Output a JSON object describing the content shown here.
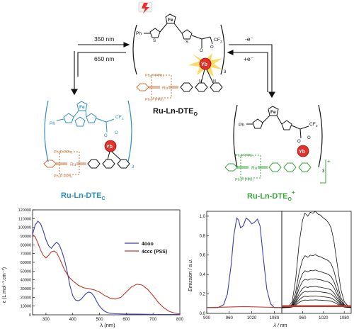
{
  "scheme": {
    "arrow_left_top": "350 nm",
    "arrow_left_bottom": "650 nm",
    "arrow_right_top": "-e⁻",
    "arrow_right_bottom": "+e⁻",
    "fe_label": "Fe",
    "ph_label": "Ph",
    "s_label": "S",
    "cf3_label": "CF",
    "cf3_sub": "3",
    "o_label": "O",
    "yb_label": "Yb",
    "ru_label": "Ru",
    "n_label": "N",
    "pph_top": "Ph₂P PPh₂",
    "pph_bottom": "Ph₂P PPh₂",
    "subscript_3": "3",
    "plus": "+",
    "label_center": "Ru-Ln-DTE",
    "label_center_sub": "O",
    "label_left": "Ru-Ln-DTE",
    "label_left_sub": "C",
    "label_right": "Ru-Ln-DTE",
    "label_right_sub": "O",
    "label_right_sup": "+",
    "colors": {
      "center_metal_frag": "#c8703a",
      "left": "#2b8fc4",
      "left_frag": "#c8703a",
      "right_frag": "#3aa63a",
      "yb": "#e8302a"
    }
  },
  "chart_data": [
    {
      "type": "line",
      "title": "",
      "xlabel": "λ (nm)",
      "ylabel": "ε (L.mol⁻¹.cm⁻¹)",
      "xlim": [
        250,
        800
      ],
      "ylim": [
        0,
        120000
      ],
      "xticks": [
        "300",
        "400",
        "500",
        "600",
        "700",
        "800"
      ],
      "yticks": [
        "0",
        "10000",
        "20000",
        "30000",
        "40000",
        "50000",
        "60000",
        "70000",
        "80000",
        "90000",
        "100000",
        "110000",
        "120000"
      ],
      "legend_position": "center-right",
      "series": [
        {
          "name": "4ooo",
          "color": "#3b3fa8",
          "x": [
            250,
            260,
            270,
            280,
            290,
            300,
            310,
            320,
            330,
            340,
            350,
            360,
            370,
            380,
            390,
            400,
            410,
            420,
            430,
            440,
            450,
            460,
            470,
            480,
            490,
            500,
            510,
            520,
            530,
            540,
            560,
            600,
            650,
            700,
            750,
            800
          ],
          "y": [
            92000,
            103000,
            107000,
            104000,
            96000,
            86000,
            79000,
            76000,
            80000,
            83000,
            80000,
            72000,
            62000,
            48000,
            33000,
            22000,
            17000,
            16000,
            17500,
            21000,
            24500,
            26000,
            25000,
            21000,
            15000,
            10000,
            6500,
            4000,
            2500,
            1800,
            1200,
            900,
            700,
            500,
            400,
            300
          ]
        },
        {
          "name": "4ccc (PSS)",
          "color": "#c0392b",
          "x": [
            250,
            260,
            270,
            280,
            290,
            300,
            310,
            320,
            330,
            340,
            350,
            360,
            370,
            380,
            390,
            400,
            420,
            440,
            460,
            480,
            500,
            520,
            540,
            560,
            580,
            600,
            620,
            640,
            660,
            680,
            700,
            720,
            740,
            760,
            780,
            800
          ],
          "y": [
            92000,
            89000,
            82000,
            74000,
            68000,
            65000,
            68000,
            72000,
            73000,
            71000,
            65000,
            58000,
            51000,
            46000,
            42000,
            39000,
            34000,
            31000,
            30000,
            28500,
            26000,
            22000,
            19000,
            18000,
            20000,
            26000,
            32000,
            35000,
            34000,
            29000,
            22000,
            14000,
            8000,
            4000,
            2000,
            1000
          ]
        }
      ]
    },
    {
      "type": "line",
      "title": "",
      "xlabel": "λ / nm",
      "ylabel": "Emission / a.u.",
      "ylim": [
        0,
        1.05
      ],
      "yticks": [
        "0,0",
        "0,2",
        "0,4",
        "0,6",
        "0,8",
        "1,0"
      ],
      "panels": [
        {
          "xlim": [
            900,
            1100
          ],
          "xticks": [
            "900",
            "960",
            "1020",
            "1080"
          ],
          "series": [
            {
              "name": "",
              "color": "#3b3fa8",
              "x": [
                900,
                930,
                945,
                955,
                965,
                972,
                980,
                985,
                990,
                997,
                1005,
                1012,
                1020,
                1028,
                1035,
                1042,
                1050,
                1060,
                1070,
                1080,
                1100
              ],
              "y": [
                0.06,
                0.06,
                0.09,
                0.2,
                0.5,
                0.8,
                0.98,
                0.96,
                0.88,
                0.9,
                0.98,
                0.96,
                0.92,
                0.94,
                0.97,
                0.9,
                0.6,
                0.25,
                0.1,
                0.06,
                0.06
              ]
            },
            {
              "name": "",
              "color": "#c0392b",
              "x": [
                900,
                1000,
                1100
              ],
              "y": [
                0.06,
                0.07,
                0.06
              ]
            }
          ]
        },
        {
          "xlim": [
            900,
            1100
          ],
          "xticks": [
            "960",
            "1020",
            "1080"
          ],
          "scales": [
            1.0,
            0.55,
            0.39,
            0.3,
            0.22,
            0.17,
            0.12,
            0.08
          ],
          "series": [
            {
              "name": "",
              "color": "#111111",
              "x": [
                900,
                920,
                930,
                940,
                950,
                960,
                967,
                975,
                982,
                990,
                997,
                1005,
                1012,
                1020,
                1028,
                1035,
                1042,
                1050,
                1060,
                1070,
                1080,
                1090,
                1100
              ],
              "y": [
                0.06,
                0.07,
                0.12,
                0.35,
                0.72,
                0.96,
                1.03,
                1.0,
                1.04,
                1.03,
                1.05,
                1.02,
                1.01,
                0.98,
                0.96,
                0.93,
                0.88,
                0.75,
                0.5,
                0.25,
                0.12,
                0.08,
                0.06
              ]
            }
          ]
        }
      ]
    }
  ]
}
